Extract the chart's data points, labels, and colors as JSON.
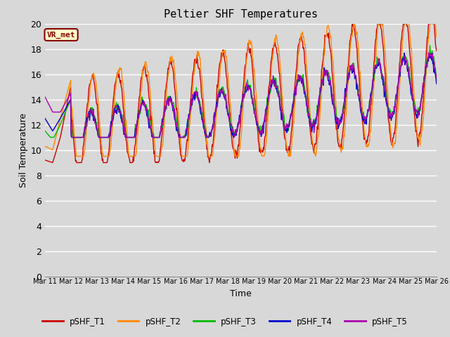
{
  "title": "Peltier SHF Temperatures",
  "xlabel": "Time",
  "ylabel": "Soil Temperature",
  "ylim": [
    0,
    20
  ],
  "yticks": [
    0,
    2,
    4,
    6,
    8,
    10,
    12,
    14,
    16,
    18,
    20
  ],
  "xtick_labels": [
    "Mar 11",
    "Mar 12",
    "Mar 13",
    "Mar 14",
    "Mar 15",
    "Mar 16",
    "Mar 17",
    "Mar 18",
    "Mar 19",
    "Mar 20",
    "Mar 21",
    "Mar 22",
    "Mar 23",
    "Mar 24",
    "Mar 25",
    "Mar 26"
  ],
  "series_colors": [
    "#cc0000",
    "#ff8800",
    "#00bb00",
    "#0000cc",
    "#aa00aa"
  ],
  "series_labels": [
    "pSHF_T1",
    "pSHF_T2",
    "pSHF_T3",
    "pSHF_T4",
    "pSHF_T5"
  ],
  "annotation_text": "VR_met",
  "annotation_bg": "#ffffcc",
  "annotation_edge": "#880000",
  "fig_bg_color": "#d8d8d8",
  "plot_bg": "#d8d8d8",
  "grid_color": "#ffffff",
  "linewidth": 1.0
}
